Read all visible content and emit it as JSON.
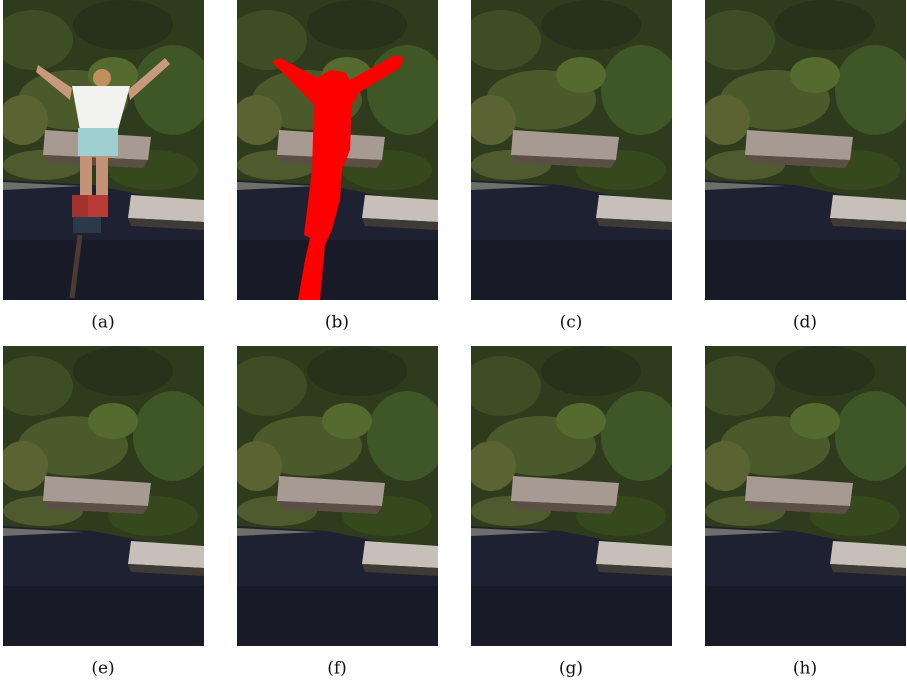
{
  "figure": {
    "panels": [
      {
        "label": "(a)"
      },
      {
        "label": "(b)"
      },
      {
        "label": "(c)"
      },
      {
        "label": "(d)"
      },
      {
        "label": "(e)"
      },
      {
        "label": "(f)"
      },
      {
        "label": "(g)"
      },
      {
        "label": "(h)"
      }
    ]
  }
}
